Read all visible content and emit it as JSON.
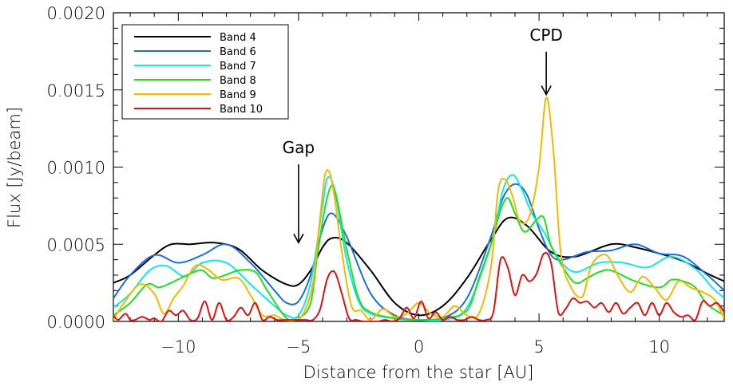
{
  "chart_data": {
    "type": "line",
    "title": "",
    "xlabel": "Distance from the star [AU]",
    "ylabel": "Flux [Jy/beam]",
    "xlim": [
      -12.7,
      12.7
    ],
    "ylim": [
      0.0,
      0.002
    ],
    "x_ticks": [
      -10,
      -5,
      0,
      5,
      10
    ],
    "x_tick_labels": [
      "−10",
      "−5",
      "0",
      "5",
      "10"
    ],
    "y_ticks": [
      0.0,
      0.0005,
      0.001,
      0.0015,
      0.002
    ],
    "y_tick_labels": [
      "0.0000",
      "0.0005",
      "0.0010",
      "0.0015",
      "0.0020"
    ],
    "grid": false,
    "legend_position": "top-left",
    "annotations": [
      {
        "text": "Gap",
        "x": -5.0,
        "y_arrow_tip": 0.00051,
        "y_text": 0.00109
      },
      {
        "text": "CPD",
        "x": 5.3,
        "y_arrow_tip": 0.00147,
        "y_text": 0.00182
      }
    ],
    "series": [
      {
        "name": "Band 4",
        "color": "#000000",
        "x": [
          -12.7,
          -12,
          -11,
          -10.3,
          -9.5,
          -8.5,
          -7.5,
          -6.5,
          -5.5,
          -5,
          -4.5,
          -4,
          -3.6,
          -3,
          -2,
          -1,
          0,
          1,
          2,
          3,
          3.7,
          4.5,
          5.5,
          6.5,
          8,
          9,
          10,
          11,
          12,
          12.7
        ],
        "y": [
          0.00025,
          0.0003,
          0.00043,
          0.0005,
          0.0005,
          0.00051,
          0.00047,
          0.00033,
          0.00024,
          0.00024,
          0.00033,
          0.00048,
          0.00054,
          0.00051,
          0.00033,
          0.00012,
          4e-05,
          0.0001,
          0.00028,
          0.00053,
          0.00067,
          0.00062,
          0.00045,
          0.00042,
          0.0005,
          0.00048,
          0.00044,
          0.00039,
          0.00031,
          0.00026
        ]
      },
      {
        "name": "Band 6",
        "color": "#1a6fe0",
        "x": [
          -12.7,
          -12,
          -11,
          -10,
          -9,
          -8,
          -7,
          -6,
          -5.5,
          -5,
          -4.5,
          -4,
          -3.6,
          -3,
          -2,
          -1,
          0,
          1,
          2,
          3,
          3.5,
          4,
          4.5,
          5,
          5.5,
          6,
          7,
          8,
          9,
          10,
          11,
          12,
          12.7
        ],
        "y": [
          0.00015,
          0.0003,
          0.00043,
          0.00038,
          0.00043,
          0.0005,
          0.00038,
          0.0002,
          0.00012,
          0.00013,
          0.0003,
          0.0006,
          0.0007,
          0.00055,
          0.00018,
          4e-05,
          1e-05,
          2e-05,
          0.00015,
          0.00055,
          0.0008,
          0.00089,
          0.00082,
          0.0006,
          0.00043,
          0.0004,
          0.00045,
          0.00046,
          0.0005,
          0.00044,
          0.00042,
          0.0003,
          0.0002
        ]
      },
      {
        "name": "Band 7",
        "color": "#10e8e8",
        "x": [
          -12.7,
          -12,
          -11.2,
          -10.5,
          -9.7,
          -9,
          -8,
          -7,
          -6,
          -5.5,
          -5,
          -4.5,
          -4,
          -3.8,
          -3.5,
          -3,
          -2.5,
          -2,
          -1,
          0,
          1,
          2,
          3,
          3.5,
          3.9,
          4.3,
          4.7,
          5.2,
          5.8,
          6.5,
          7.5,
          8.5,
          9.5,
          10.5,
          11.5,
          12.2,
          12.7
        ],
        "y": [
          9e-05,
          0.00018,
          0.00033,
          0.00036,
          0.00029,
          0.00038,
          0.00038,
          0.00024,
          0.0001,
          4e-05,
          4e-05,
          0.00025,
          0.00075,
          0.00093,
          0.00085,
          0.0004,
          0.00013,
          5e-05,
          2e-05,
          1e-05,
          1e-05,
          9e-05,
          0.0005,
          0.00085,
          0.00095,
          0.00085,
          0.0007,
          0.00058,
          0.00041,
          0.00032,
          0.00038,
          0.00038,
          0.00035,
          0.00042,
          0.00034,
          0.00022,
          0.00015
        ]
      },
      {
        "name": "Band 8",
        "color": "#22dd22",
        "x": [
          -12.7,
          -12,
          -11.3,
          -10.8,
          -10.3,
          -9.5,
          -9,
          -8.5,
          -7.5,
          -6.8,
          -6.3,
          -5.5,
          -5,
          -4.5,
          -4.2,
          -3.8,
          -3.5,
          -3,
          -2.5,
          -2,
          -1,
          0,
          1,
          2,
          2.5,
          3,
          3.4,
          3.7,
          4,
          4.4,
          4.9,
          5.2,
          5.5,
          6,
          6.5,
          7,
          7.5,
          8,
          9,
          10,
          10.5,
          11,
          11.5,
          12,
          12.7
        ],
        "y": [
          4e-05,
          0.00012,
          0.00024,
          0.00022,
          0.00025,
          0.00031,
          0.00033,
          0.00028,
          0.00033,
          0.00032,
          0.0002,
          2e-05,
          2e-05,
          0.00012,
          0.00045,
          0.00081,
          0.00085,
          0.00047,
          0.00015,
          6e-05,
          2e-05,
          1e-05,
          2e-05,
          7e-05,
          0.00028,
          0.0005,
          0.00072,
          0.0008,
          0.0007,
          0.00058,
          0.00066,
          0.00067,
          0.00049,
          0.00035,
          0.00025,
          0.00028,
          0.00032,
          0.00033,
          0.00026,
          0.00022,
          0.00027,
          0.00026,
          0.00022,
          0.00011,
          4e-05
        ]
      },
      {
        "name": "Band 9",
        "color": "#f5b800",
        "x": [
          -12.7,
          -12.3,
          -11.6,
          -11,
          -10.6,
          -10.2,
          -9.8,
          -9.3,
          -8.8,
          -8.2,
          -7.5,
          -7,
          -6.5,
          -6,
          -5.6,
          -5.2,
          -4.8,
          -4.4,
          -4.1,
          -3.9,
          -3.7,
          -3.5,
          -3.2,
          -2.8,
          -2.4,
          -2,
          -1.5,
          -1,
          -0.5,
          0,
          0.5,
          1,
          1.5,
          2,
          2.5,
          3,
          3.3,
          3.6,
          3.9,
          4.2,
          4.6,
          5,
          5.3,
          5.6,
          5.9,
          6.3,
          6.8,
          7.2,
          7.8,
          8.3,
          8.8,
          9.3,
          9.8,
          10.3,
          10.8,
          11.3,
          11.8,
          12.3,
          12.7
        ],
        "y": [
          1e-05,
          0.00011,
          0.00024,
          0.00018,
          5e-05,
          0.00015,
          0.00023,
          0.00036,
          0.00034,
          0.00027,
          0.00028,
          0.00017,
          4e-05,
          4e-05,
          1e-05,
          1e-05,
          5e-05,
          0.00025,
          0.00068,
          0.00095,
          0.00096,
          0.0008,
          0.00045,
          0.0001,
          7e-05,
          1e-05,
          8e-05,
          3e-05,
          5e-05,
          0.00012,
          5e-05,
          3e-05,
          0.0001,
          4e-05,
          5e-05,
          0.00035,
          0.00085,
          0.00092,
          0.00081,
          0.00065,
          0.00068,
          0.001,
          0.00145,
          0.0011,
          0.00045,
          0.00023,
          0.00016,
          0.00037,
          0.00043,
          0.00029,
          0.00019,
          0.00029,
          0.00022,
          0.00014,
          0.00026,
          0.00022,
          0.00019,
          0.00014,
          2e-05
        ]
      },
      {
        "name": "Band 10",
        "color": "#dd1111",
        "x": [
          -12.7,
          -12.5,
          -12.2,
          -12,
          -11.8,
          -11.5,
          -11.2,
          -11,
          -10.7,
          -10.4,
          -10.1,
          -9.8,
          -9.5,
          -9.2,
          -8.9,
          -8.6,
          -8.3,
          -8,
          -7.7,
          -7.4,
          -7.1,
          -6.8,
          -6.5,
          -6.2,
          -5.9,
          -5.6,
          -5.3,
          -5,
          -4.7,
          -4.4,
          -4.1,
          -3.8,
          -3.5,
          -3.2,
          -2.9,
          -2.6,
          -2.3,
          -2,
          -1.7,
          -1.4,
          -1.1,
          -0.8,
          -0.5,
          -0.2,
          0.1,
          0.4,
          0.7,
          1,
          1.3,
          1.6,
          1.9,
          2.2,
          2.5,
          2.8,
          3.1,
          3.4,
          3.7,
          4,
          4.3,
          4.6,
          4.9,
          5.2,
          5.5,
          5.8,
          6.1,
          6.4,
          6.7,
          7,
          7.3,
          7.6,
          7.9,
          8.2,
          8.5,
          8.8,
          9.1,
          9.4,
          9.7,
          10,
          10.3,
          10.6,
          10.9,
          11.2,
          11.5,
          11.8,
          12.1,
          12.4,
          12.7
        ],
        "y": [
          4e-05,
          1e-05,
          5e-05,
          1e-05,
          1e-05,
          3e-05,
          1e-05,
          2e-05,
          0.0,
          7e-05,
          4e-05,
          7e-05,
          1e-05,
          2e-05,
          0.00013,
          1e-05,
          0.00012,
          1e-05,
          3e-05,
          9e-05,
          4e-05,
          0.00012,
          1e-05,
          3e-05,
          1e-05,
          1e-05,
          1e-05,
          1e-05,
          1e-05,
          1e-05,
          8e-05,
          0.00028,
          0.00032,
          0.00018,
          2e-05,
          1e-05,
          0.0,
          0.0,
          0.0,
          1e-05,
          0.0,
          2e-05,
          9e-05,
          2e-05,
          0.00013,
          2e-05,
          6e-05,
          1e-05,
          3e-05,
          1e-05,
          1e-05,
          3e-05,
          1e-05,
          1e-05,
          6e-05,
          0.0004,
          0.00035,
          0.00017,
          0.0003,
          0.00026,
          0.00031,
          0.00044,
          0.00038,
          6e-05,
          8e-05,
          0.00015,
          0.00012,
          0.00013,
          9e-05,
          0.00012,
          6e-05,
          0.00012,
          5e-05,
          9e-05,
          0.00012,
          4e-05,
          0.00012,
          4e-05,
          0.00012,
          6e-05,
          3e-05,
          4e-05,
          1e-05,
          0.00013,
          0.0001,
          0.00012,
          6e-05
        ]
      }
    ]
  }
}
